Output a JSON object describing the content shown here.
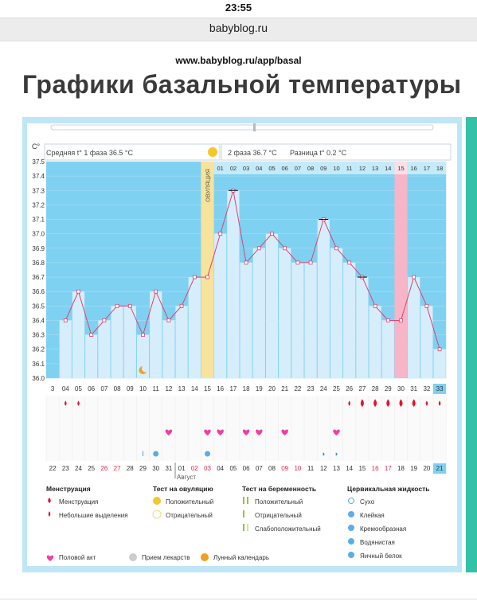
{
  "status_bar": {
    "time": "23:55"
  },
  "browser": {
    "domain": "babyblog.ru",
    "page_url": "www.babyblog.ru/app/basal"
  },
  "page": {
    "title": "Графики базальной температуры"
  },
  "chart": {
    "y_unit": "C°",
    "phase1_label": "Средняя t° 1 фаза 36.5 °C",
    "phase2_label": "2 фаза 36.7 °C",
    "diff_label": "Разница t° 0.2 °C",
    "ovulation_label": "ОВУЛЯЦИЯ",
    "month_label": "Август",
    "day_labels_top": [
      "01",
      "02",
      "03",
      "04",
      "05",
      "06",
      "07",
      "08",
      "09",
      "10",
      "11",
      "12",
      "13",
      "14",
      "15",
      "16",
      "17",
      "18"
    ],
    "cycle_days": [
      "3",
      "04",
      "05",
      "06",
      "07",
      "08",
      "09",
      "10",
      "11",
      "12",
      "13",
      "14",
      "15",
      "16",
      "17",
      "18",
      "19",
      "20",
      "21",
      "22",
      "23",
      "24",
      "25",
      "26",
      "27",
      "28",
      "29",
      "30",
      "31",
      "32",
      "33"
    ],
    "dates": [
      "22",
      "23",
      "24",
      "25",
      "26",
      "27",
      "28",
      "29",
      "30",
      "31",
      "01",
      "02",
      "03",
      "04",
      "05",
      "06",
      "07",
      "08",
      "09",
      "10",
      "11",
      "12",
      "13",
      "14",
      "15",
      "16",
      "17",
      "18",
      "19",
      "20",
      "21"
    ],
    "date_red_indexes": [
      4,
      5,
      11,
      12,
      18,
      19,
      25,
      26
    ]
  },
  "chart_data": {
    "type": "line",
    "title": "",
    "ylabel": "C°",
    "ylim": [
      36.0,
      37.5
    ],
    "yticks": [
      36.0,
      36.1,
      36.2,
      36.3,
      36.4,
      36.5,
      36.6,
      36.7,
      36.8,
      36.9,
      37.0,
      37.1,
      37.2,
      37.3,
      37.4,
      37.5
    ],
    "x": [
      "3",
      "04",
      "05",
      "06",
      "07",
      "08",
      "09",
      "10",
      "11",
      "12",
      "13",
      "14",
      "15",
      "16",
      "17",
      "18",
      "19",
      "20",
      "21",
      "22",
      "23",
      "24",
      "25",
      "26",
      "27",
      "28",
      "29",
      "30",
      "31",
      "32",
      "33"
    ],
    "values": [
      null,
      36.4,
      36.6,
      36.3,
      36.4,
      36.5,
      36.5,
      36.3,
      36.6,
      36.4,
      36.5,
      36.7,
      36.7,
      37.0,
      37.3,
      36.8,
      36.9,
      37.0,
      36.9,
      36.8,
      36.8,
      37.1,
      36.9,
      36.8,
      36.7,
      36.5,
      36.4,
      36.4,
      36.7,
      36.5,
      36.2
    ],
    "ovulation_cycle_day": "15",
    "highlight_cycle_day": "30",
    "phase1_mean": 36.5,
    "phase2_mean": 36.7,
    "difference": 0.2
  },
  "legend": {
    "menstruation": {
      "title": "Менструация",
      "items": [
        "Менструация",
        "Небольшие выделения"
      ]
    },
    "ovulation_test": {
      "title": "Тест на овуляцию",
      "items": [
        "Положительный",
        "Отрицательный"
      ]
    },
    "pregnancy_test": {
      "title": "Тест на беременность",
      "items": [
        "Положительный",
        "Отрицательный",
        "Слабоположительный"
      ]
    },
    "cervical": {
      "title": "Цервикальная жидкость",
      "items": [
        "Сухо",
        "Клейкая",
        "Кремообразная",
        "Водянистая",
        "Яичный белок"
      ]
    },
    "bottom_row": [
      "Половой акт",
      "Прием лекарств",
      "Лунный календарь"
    ]
  },
  "colors": {
    "sky": "#7fd1f2",
    "bar": "#d6eefb",
    "accent_green": "#33c2a8",
    "line": "#e04070",
    "ovulation": "#f7e39a",
    "highlight": "#f6b6c8",
    "red": "#e8112d"
  }
}
